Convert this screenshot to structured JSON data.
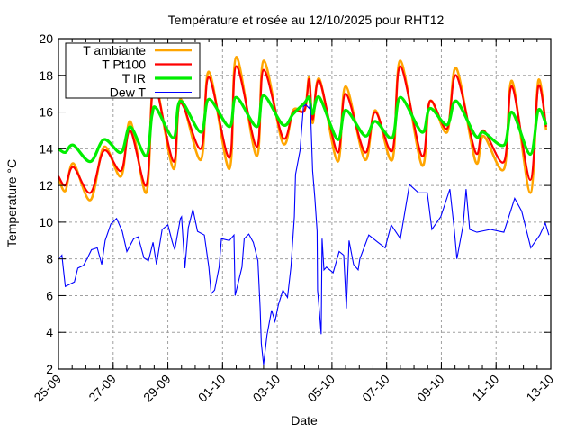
{
  "chart_data": {
    "type": "line",
    "title": "Température et rosée au 12/10/2025 pour RHT12",
    "xlabel": "Date",
    "ylabel": "Temperature °C",
    "xlim": [
      "2025-09-25 00:00",
      "2025-10-13 00:00"
    ],
    "ylim": [
      2,
      20
    ],
    "yticks": [
      2,
      4,
      6,
      8,
      10,
      12,
      14,
      16,
      18,
      20
    ],
    "xticks": [
      {
        "t": "2025-09-25 00:00",
        "label": "25-09"
      },
      {
        "t": "2025-09-27 00:00",
        "label": "27-09"
      },
      {
        "t": "2025-09-29 00:00",
        "label": "29-09"
      },
      {
        "t": "2025-10-01 00:00",
        "label": "01-10"
      },
      {
        "t": "2025-10-03 00:00",
        "label": "03-10"
      },
      {
        "t": "2025-10-05 00:00",
        "label": "05-10"
      },
      {
        "t": "2025-10-07 00:00",
        "label": "07-10"
      },
      {
        "t": "2025-10-09 00:00",
        "label": "09-10"
      },
      {
        "t": "2025-10-11 00:00",
        "label": "11-10"
      },
      {
        "t": "2025-10-13 00:00",
        "label": "13-10"
      }
    ],
    "grid": true,
    "legend_position": "top-left",
    "x": [
      "2025-09-25 00:00",
      "2025-09-25 06:00",
      "2025-09-25 13:00",
      "2025-09-26 04:00",
      "2025-09-26 16:00",
      "2025-09-27 07:00",
      "2025-09-27 15:00",
      "2025-09-28 05:00",
      "2025-09-28 10:00",
      "2025-09-28 14:00",
      "2025-09-29 05:00",
      "2025-09-29 11:00",
      "2025-09-30 05:00",
      "2025-09-30 12:00",
      "2025-10-01 06:00",
      "2025-10-01 12:00",
      "2025-10-02 06:00",
      "2025-10-02 12:00",
      "2025-10-03 05:00",
      "2025-10-03 14:00",
      "2025-10-04 00:00",
      "2025-10-04 04:00",
      "2025-10-04 07:00",
      "2025-10-04 13:00",
      "2025-10-05 05:00",
      "2025-10-05 12:00",
      "2025-10-06 05:00",
      "2025-10-06 14:00",
      "2025-10-07 05:00",
      "2025-10-07 12:00",
      "2025-10-08 07:00",
      "2025-10-08 14:00",
      "2025-10-09 05:00",
      "2025-10-09 13:00",
      "2025-10-10 06:00",
      "2025-10-10 13:00",
      "2025-10-11 07:00",
      "2025-10-11 14:00",
      "2025-10-12 06:00",
      "2025-10-12 13:00",
      "2025-10-12 20:00"
    ],
    "series": [
      {
        "name": "T ambiante",
        "color": "#ffa500",
        "values": [
          12.4,
          11.7,
          13.2,
          11.2,
          14.1,
          12.5,
          15.5,
          11.6,
          16.9,
          17.5,
          12.9,
          16.7,
          13.4,
          18.2,
          12.9,
          19.0,
          13.6,
          18.8,
          14.3,
          16.1,
          16.1,
          17.9,
          15.4,
          17.8,
          13.3,
          17.4,
          13.4,
          16.1,
          13.4,
          18.8,
          13.1,
          16.6,
          14.9,
          18.4,
          13.3,
          14.7,
          12.9,
          17.7,
          11.6,
          17.7,
          15.0
        ]
      },
      {
        "name": "T Pt100",
        "color": "#ff0000",
        "values": [
          12.5,
          12.0,
          13.0,
          11.6,
          13.9,
          12.8,
          15.0,
          12.0,
          16.8,
          17.3,
          13.3,
          16.5,
          14.0,
          17.9,
          13.5,
          18.5,
          14.1,
          18.3,
          14.6,
          16.0,
          16.1,
          17.8,
          15.6,
          17.7,
          13.8,
          17.0,
          13.8,
          16.0,
          13.9,
          18.5,
          13.6,
          16.6,
          15.1,
          18.0,
          13.8,
          15.0,
          13.3,
          17.4,
          12.3,
          17.4,
          15.2
        ]
      },
      {
        "name": "T IR",
        "color": "#00ee00",
        "values": [
          14.0,
          13.8,
          14.2,
          13.3,
          14.5,
          13.8,
          15.2,
          13.6,
          15.8,
          16.2,
          14.6,
          16.6,
          14.9,
          16.7,
          15.2,
          16.8,
          15.2,
          16.9,
          15.3,
          15.9,
          16.5,
          16.8,
          15.9,
          16.8,
          14.5,
          16.1,
          14.7,
          15.5,
          14.6,
          16.8,
          14.9,
          16.2,
          15.3,
          16.6,
          14.7,
          14.9,
          14.2,
          16.0,
          13.7,
          16.1,
          15.3
        ]
      },
      {
        "name": "Dew T",
        "color": "#0000ff",
        "points": [
          [
            "2025-09-25 01:00",
            8.05
          ],
          [
            "2025-09-25 03:00",
            8.2
          ],
          [
            "2025-09-25 05:00",
            7.07
          ],
          [
            "2025-09-25 06:00",
            6.5
          ],
          [
            "2025-09-25 14:00",
            6.75
          ],
          [
            "2025-09-25 17:00",
            7.5
          ],
          [
            "2025-09-25 22:00",
            7.65
          ],
          [
            "2025-09-26 01:00",
            8.0
          ],
          [
            "2025-09-26 05:00",
            8.5
          ],
          [
            "2025-09-26 10:00",
            8.6
          ],
          [
            "2025-09-26 14:00",
            7.7
          ],
          [
            "2025-09-26 17:00",
            9.0
          ],
          [
            "2025-09-26 22:00",
            9.9
          ],
          [
            "2025-09-27 03:00",
            10.2
          ],
          [
            "2025-09-27 08:00",
            9.5
          ],
          [
            "2025-09-27 12:00",
            8.4
          ],
          [
            "2025-09-27 18:00",
            9.1
          ],
          [
            "2025-09-27 22:00",
            9.2
          ],
          [
            "2025-09-28 03:00",
            8.05
          ],
          [
            "2025-09-28 07:00",
            7.9
          ],
          [
            "2025-09-28 11:00",
            8.9
          ],
          [
            "2025-09-28 14:00",
            7.7
          ],
          [
            "2025-09-28 19:00",
            9.6
          ],
          [
            "2025-09-29 00:00",
            9.85
          ],
          [
            "2025-09-29 04:00",
            8.9
          ],
          [
            "2025-09-29 06:00",
            8.5
          ],
          [
            "2025-09-29 11:00",
            10.2
          ],
          [
            "2025-09-29 12:00",
            10.3
          ],
          [
            "2025-09-29 15:00",
            7.5
          ],
          [
            "2025-09-29 18:00",
            9.7
          ],
          [
            "2025-09-29 22:00",
            10.7
          ],
          [
            "2025-09-30 02:00",
            9.5
          ],
          [
            "2025-09-30 08:00",
            9.3
          ],
          [
            "2025-09-30 12:00",
            7.55
          ],
          [
            "2025-09-30 14:00",
            6.1
          ],
          [
            "2025-09-30 17:00",
            6.3
          ],
          [
            "2025-09-30 21:00",
            7.55
          ],
          [
            "2025-09-30 23:00",
            9.1
          ],
          [
            "2025-10-01 06:00",
            9.0
          ],
          [
            "2025-10-01 10:00",
            9.3
          ],
          [
            "2025-10-01 11:00",
            6.0
          ],
          [
            "2025-10-01 17:00",
            7.55
          ],
          [
            "2025-10-01 19:00",
            9.1
          ],
          [
            "2025-10-01 23:00",
            9.35
          ],
          [
            "2025-10-02 03:00",
            8.9
          ],
          [
            "2025-10-02 07:00",
            7.9
          ],
          [
            "2025-10-02 09:00",
            5.3
          ],
          [
            "2025-10-02 10:00",
            3.4
          ],
          [
            "2025-10-02 12:00",
            2.25
          ],
          [
            "2025-10-02 15:00",
            3.85
          ],
          [
            "2025-10-02 19:00",
            5.2
          ],
          [
            "2025-10-02 22:00",
            4.6
          ],
          [
            "2025-10-03 01:00",
            5.5
          ],
          [
            "2025-10-03 05:00",
            6.3
          ],
          [
            "2025-10-03 09:00",
            5.9
          ],
          [
            "2025-10-03 12:00",
            7.55
          ],
          [
            "2025-10-03 15:00",
            10.3
          ],
          [
            "2025-10-03 16:00",
            12.6
          ],
          [
            "2025-10-03 20:00",
            13.9
          ],
          [
            "2025-10-03 23:00",
            16.3
          ],
          [
            "2025-10-04 01:00",
            16.4
          ],
          [
            "2025-10-04 04:00",
            16.2
          ],
          [
            "2025-10-04 05:00",
            16.5
          ],
          [
            "2025-10-04 07:00",
            12.8
          ],
          [
            "2025-10-04 09:00",
            11.3
          ],
          [
            "2025-10-04 11:00",
            9.5
          ],
          [
            "2025-10-04 11:20",
            6.3
          ],
          [
            "2025-10-04 13:00",
            5.1
          ],
          [
            "2025-10-04 14:30",
            3.9
          ],
          [
            "2025-10-04 15:20",
            9.1
          ],
          [
            "2025-10-04 17:00",
            7.4
          ],
          [
            "2025-10-04 19:10",
            7.55
          ],
          [
            "2025-10-05 01:00",
            7.25
          ],
          [
            "2025-10-05 06:20",
            8.4
          ],
          [
            "2025-10-05 10:20",
            8.2
          ],
          [
            "2025-10-05 12:40",
            5.3
          ],
          [
            "2025-10-05 15:00",
            9.0
          ],
          [
            "2025-10-05 19:00",
            7.7
          ],
          [
            "2025-10-05 23:00",
            7.4
          ],
          [
            "2025-10-06 00:30",
            8.0
          ],
          [
            "2025-10-06 08:20",
            9.3
          ],
          [
            "2025-10-06 16:20",
            8.9
          ],
          [
            "2025-10-06 22:40",
            8.6
          ],
          [
            "2025-10-07 04:00",
            9.85
          ],
          [
            "2025-10-07 12:00",
            9.1
          ],
          [
            "2025-10-07 20:00",
            12.05
          ],
          [
            "2025-10-08 04:00",
            11.6
          ],
          [
            "2025-10-08 11:40",
            11.6
          ],
          [
            "2025-10-08 15:40",
            9.6
          ],
          [
            "2025-10-08 23:30",
            10.3
          ],
          [
            "2025-10-09 07:30",
            11.8
          ],
          [
            "2025-10-09 11:20",
            9.6
          ],
          [
            "2025-10-09 13:40",
            8.0
          ],
          [
            "2025-10-09 19:10",
            9.85
          ],
          [
            "2025-10-09 21:40",
            11.8
          ],
          [
            "2025-10-10 00:50",
            9.6
          ],
          [
            "2025-10-10 07:10",
            9.45
          ],
          [
            "2025-10-10 19:00",
            9.6
          ],
          [
            "2025-10-11 06:50",
            9.45
          ],
          [
            "2025-10-11 16:20",
            11.3
          ],
          [
            "2025-10-11 22:30",
            10.6
          ],
          [
            "2025-10-12 06:30",
            8.6
          ],
          [
            "2025-10-12 14:20",
            9.3
          ],
          [
            "2025-10-12 19:10",
            9.95
          ],
          [
            "2025-10-12 22:20",
            9.3
          ]
        ]
      }
    ]
  }
}
